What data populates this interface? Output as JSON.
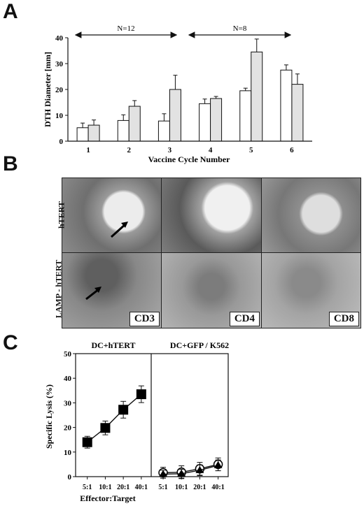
{
  "panels": {
    "a_letter": "A",
    "b_letter": "B",
    "c_letter": "C"
  },
  "panel_b": {
    "row_labels": [
      "hTERT",
      "LAMP - hTERT"
    ],
    "column_labels": [
      "CD3",
      "CD4",
      "CD8"
    ]
  },
  "chart_data": [
    {
      "type": "bar",
      "xlabel": "Vaccine Cycle Number",
      "ylabel": "DTH Diameter [mm]",
      "ylim": [
        0,
        40
      ],
      "yticks": [
        0,
        10,
        20,
        30,
        40
      ],
      "categories": [
        "1",
        "2",
        "3",
        "4",
        "5",
        "6"
      ],
      "series": [
        {
          "fill": "#ffffff",
          "values": [
            5.2,
            8,
            7.8,
            14.5,
            19.5,
            27.5
          ],
          "errors": [
            1.8,
            2.2,
            2.8,
            1.8,
            1,
            2
          ]
        },
        {
          "fill": "#e2e2e2",
          "values": [
            6.2,
            13.5,
            20,
            16.5,
            34.5,
            22
          ],
          "errors": [
            2,
            2.2,
            5.5,
            0.8,
            5,
            4
          ]
        }
      ],
      "annotations": [
        {
          "text": "N=12",
          "from": "1",
          "to": "3"
        },
        {
          "text": "N=8",
          "from": "4",
          "to": "6"
        }
      ]
    },
    {
      "type": "line",
      "xlabel": "Effector:Target",
      "ylabel": "Specific Lysis (%)",
      "ylim": [
        0,
        50
      ],
      "yticks": [
        0,
        10,
        20,
        30,
        40,
        50
      ],
      "sub_panels": [
        {
          "title": "DC+hTERT",
          "x": [
            "5:1",
            "10:1",
            "20:1",
            "40:1"
          ],
          "series": [
            {
              "marker": "square",
              "values": [
                14,
                19.8,
                27.2,
                33.5
              ],
              "errors": [
                2.4,
                2.8,
                3.4,
                3.4
              ]
            }
          ]
        },
        {
          "title": "DC+GFP / K562",
          "x": [
            "5:1",
            "10:1",
            "20:1",
            "40:1"
          ],
          "series": [
            {
              "marker": "open-circle",
              "values": [
                1.6,
                1.8,
                3.2,
                5
              ],
              "errors": [
                2.2,
                2.6,
                2.6,
                2.6
              ]
            },
            {
              "marker": "filled-triangle",
              "values": [
                1,
                1.2,
                2.6,
                4.6
              ],
              "errors": [
                1.6,
                1.8,
                2.2,
                2.2
              ]
            }
          ]
        }
      ]
    }
  ]
}
